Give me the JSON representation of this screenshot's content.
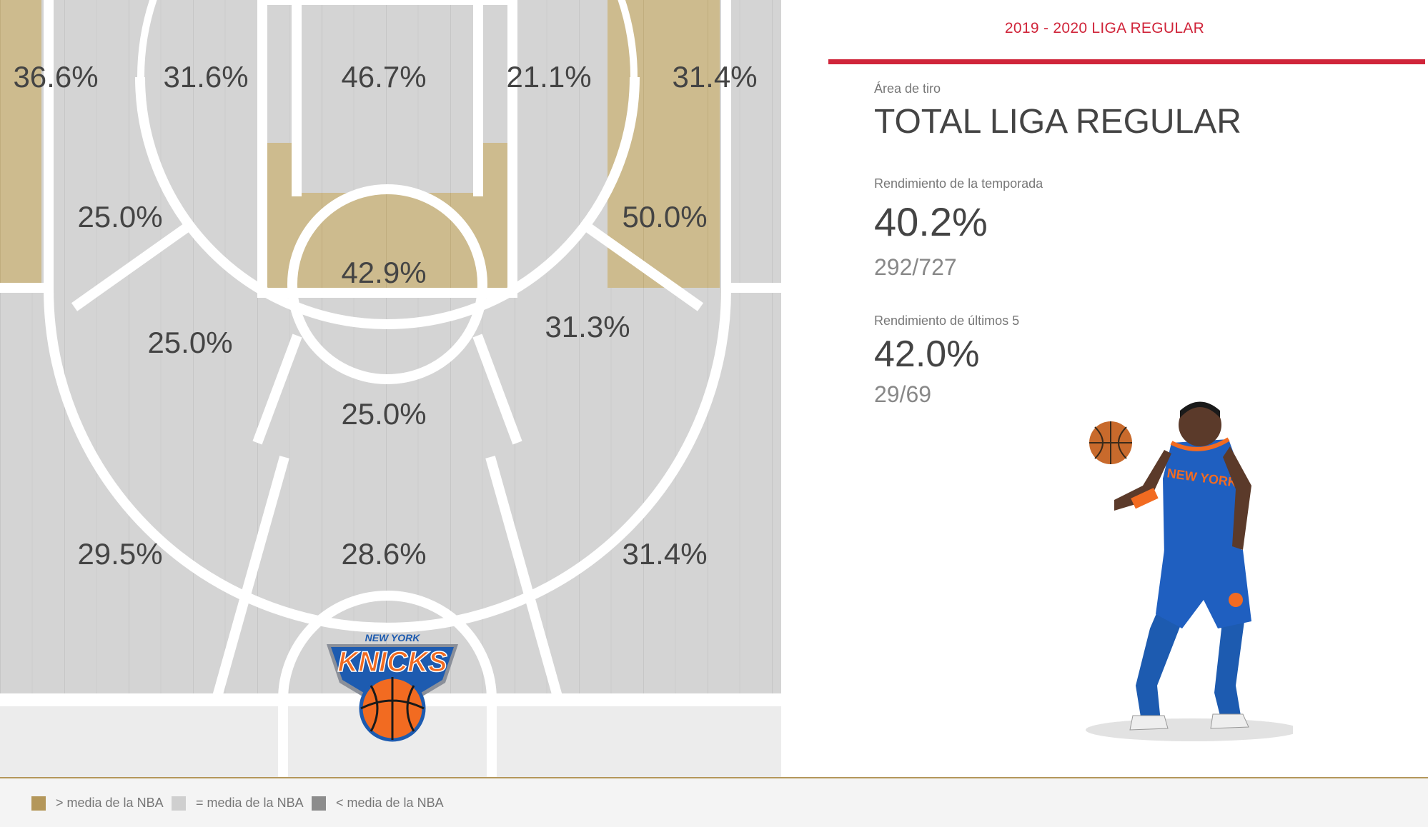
{
  "season": {
    "label": "2019 - 2020 LIGA REGULAR"
  },
  "area": {
    "label": "Área de tiro",
    "title": "TOTAL LIGA REGULAR"
  },
  "season_stats": {
    "label": "Rendimiento de la temporada",
    "pct": "40.2%",
    "ratio": "292/727"
  },
  "last5_stats": {
    "label": "Rendimiento de últimos 5",
    "pct": "42.0%",
    "ratio": "29/69"
  },
  "zones": {
    "left_corner": "36.6%",
    "left_mid_top": "31.6%",
    "paint_top": "46.7%",
    "right_mid_top": "21.1%",
    "right_corner": "31.4%",
    "left_mid": "25.0%",
    "right_mid": "50.0%",
    "restricted": "42.9%",
    "left_wing_mid": "25.0%",
    "right_wing_mid": "31.3%",
    "top_key": "25.0%",
    "left_three": "29.5%",
    "center_three": "28.6%",
    "right_three": "31.4%"
  },
  "logo": {
    "top_text": "NEW YORK",
    "main_text": "KNICKS"
  },
  "legend": [
    {
      "label": "> media de la NBA",
      "color": "#b4975a"
    },
    {
      "label": "= media de la NBA",
      "color": "#cfcfcf"
    },
    {
      "label": "< media de la NBA",
      "color": "#8c8c8c"
    }
  ],
  "colors": {
    "above": "#c8b68a",
    "equal": "#d4d4d4",
    "accent": "#d0253a",
    "knicks_blue": "#1d5bb0",
    "knicks_orange": "#f26b21"
  }
}
